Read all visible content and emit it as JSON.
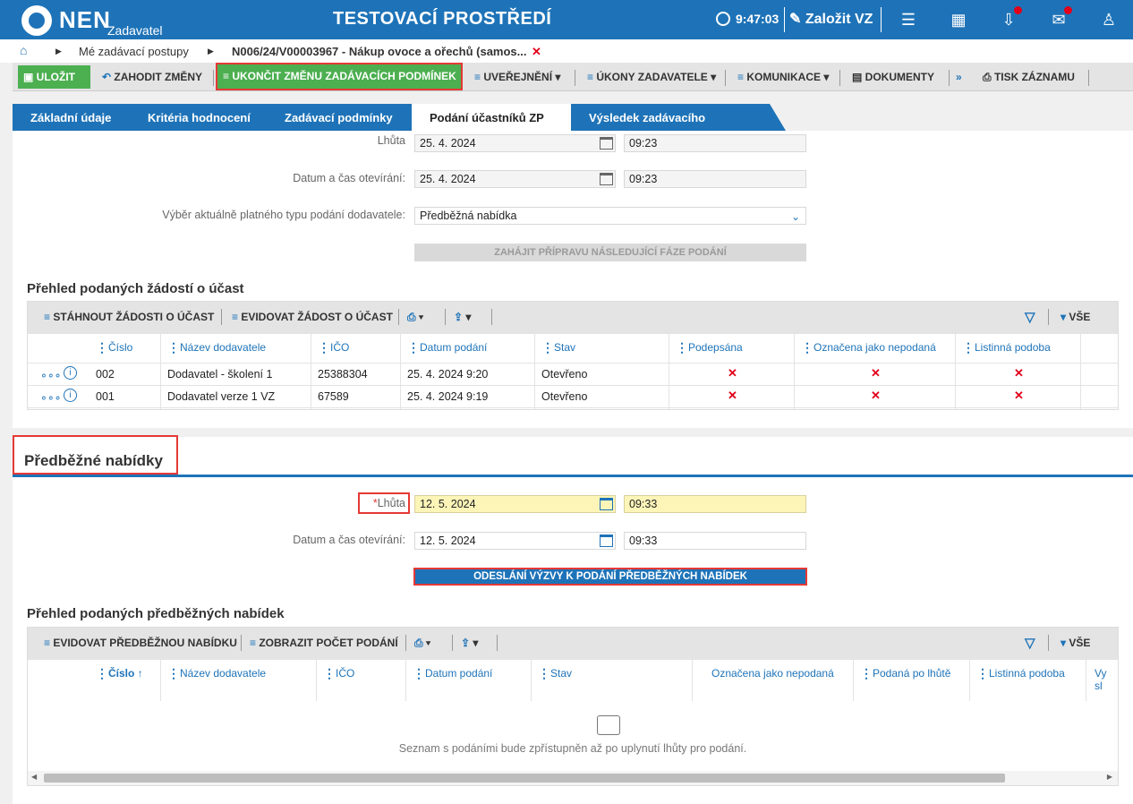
{
  "header": {
    "brand": "NEN",
    "brand_sub": "Zadavatel",
    "env_title": "TESTOVACÍ PROSTŘEDÍ",
    "time": "9:47:03",
    "create_label": "Založit VZ"
  },
  "breadcrumb": {
    "item1": "Mé zadávací postupy",
    "item2": "N006/24/V00003967 - Nákup ovoce a ořechů (samos..."
  },
  "toolbar": {
    "save": "ULOŽIT",
    "discard": "ZAHODIT ZMĚNY",
    "end_change": "UKONČIT ZMĚNU ZADÁVACÍCH PODMÍNEK",
    "publish": "UVEŘEJNĚNÍ",
    "actions": "ÚKONY ZADAVATELE",
    "communication": "KOMUNIKACE",
    "documents": "DOKUMENTY",
    "print": "TISK ZÁZNAMU"
  },
  "tabs": [
    "Základní údaje",
    "Kritéria hodnocení",
    "Zadávací podmínky",
    "Podání účastníků ZP",
    "Výsledek zadávacího postupu"
  ],
  "form1": {
    "deadline_label": "Lhůta",
    "deadline_date": "25. 4. 2024",
    "deadline_time": "09:23",
    "opening_label": "Datum a čas otevírání:",
    "opening_date": "25. 4. 2024",
    "opening_time": "09:23",
    "type_label": "Výběr aktuálně platného typu podání dodavatele:",
    "type_value": "Předběžná nabídka",
    "start_button": "ZAHÁJIT PŘÍPRAVU NÁSLEDUJÍCÍ FÁZE PODÁNÍ"
  },
  "grid1": {
    "title": "Přehled podaných žádostí o účast",
    "btn_download": "STÁHNOUT ŽÁDOSTI O ÚČAST",
    "btn_record": "EVIDOVAT ŽÁDOST O ÚČAST",
    "all_label": "VŠE",
    "columns": [
      "Číslo",
      "Název dodavatele",
      "IČO",
      "Datum podání",
      "Stav",
      "Podepsána",
      "Označena jako nepodaná",
      "Listinná podoba"
    ],
    "rows": [
      {
        "num": "002",
        "name": "Dodavatel - školení 1",
        "ico": "25388304",
        "date": "25. 4. 2024 9:20",
        "state": "Otevřeno"
      },
      {
        "num": "001",
        "name": "Dodavatel verze 1 VZ",
        "ico": "67589",
        "date": "25. 4. 2024 9:19",
        "state": "Otevřeno"
      }
    ],
    "xmark": "✕"
  },
  "section2": {
    "title": "Předběžné nabídky",
    "required_mark": "*",
    "deadline_label": "Lhůta",
    "deadline_date": "12. 5. 2024",
    "deadline_time": "09:33",
    "opening_label": "Datum a čas otevírání:",
    "opening_date": "12. 5. 2024",
    "opening_time": "09:33",
    "send_button": "ODESLÁNÍ VÝZVY K PODÁNÍ PŘEDBĚŽNÝCH NABÍDEK"
  },
  "grid2": {
    "title": "Přehled podaných předběžných nabídek",
    "btn_record": "EVIDOVAT PŘEDBĚŽNOU NABÍDKU",
    "btn_count": "ZOBRAZIT POČET PODÁNÍ",
    "all_label": "VŠE",
    "columns": [
      "Číslo",
      "Název dodavatele",
      "IČO",
      "Datum podání",
      "Stav",
      "Označena jako nepodaná",
      "Podaná po lhůtě",
      "Listinná podoba",
      "Vy sl"
    ],
    "sort_arrow": "↑",
    "empty_message": "Seznam s podáními bude zpřístupněn až po uplynutí lhůty pro podání."
  }
}
